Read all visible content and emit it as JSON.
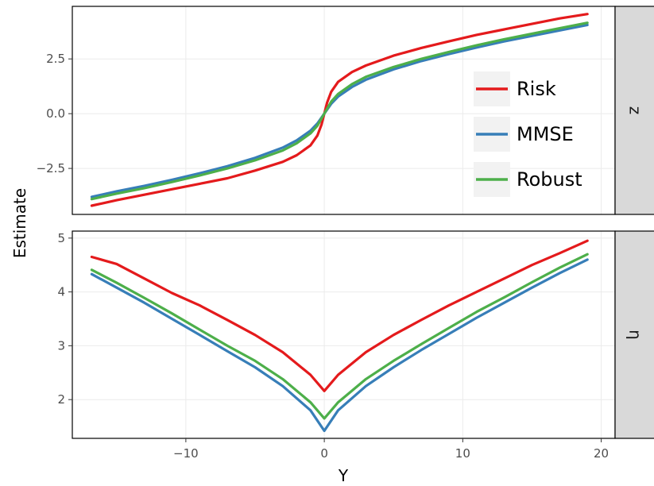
{
  "chart_data": {
    "type": "line",
    "xlabel": "Y",
    "ylabel": "Estimate",
    "xlim": [
      -18.2,
      21
    ],
    "xticks": [
      -10,
      0,
      10,
      20
    ],
    "x_tick_labels": [
      "−10",
      "0",
      "10",
      "20"
    ],
    "grid": true,
    "legend_position": "inside-top-right (top panel)",
    "colors": {
      "Risk": "#e41a1c",
      "MMSE": "#377eb8",
      "Robust": "#4daf4a"
    },
    "legend": [
      "Risk",
      "MMSE",
      "Robust"
    ],
    "panels": [
      {
        "strip_label": "z",
        "ylim": [
          -4.6,
          4.9
        ],
        "yticks": [
          -2.5,
          0,
          2.5
        ],
        "y_tick_labels": [
          "−2.5",
          "0.0",
          "2.5"
        ],
        "series": [
          {
            "name": "Risk",
            "color": "#e41a1c",
            "x": [
              -16.8,
              -15,
              -13,
              -11,
              -9,
              -7,
              -5,
              -3,
              -2,
              -1,
              -0.5,
              -0.2,
              0,
              0.2,
              0.5,
              1,
              2,
              3,
              5,
              7,
              9,
              11,
              13,
              15,
              17,
              19
            ],
            "y": [
              -4.2,
              -3.95,
              -3.7,
              -3.45,
              -3.2,
              -2.95,
              -2.6,
              -2.2,
              -1.9,
              -1.45,
              -1.0,
              -0.5,
              0.0,
              0.5,
              1.0,
              1.45,
              1.9,
              2.2,
              2.65,
              3.0,
              3.3,
              3.6,
              3.85,
              4.1,
              4.35,
              4.55
            ]
          },
          {
            "name": "MMSE",
            "color": "#377eb8",
            "x": [
              -16.8,
              -15,
              -13,
              -11,
              -9,
              -7,
              -5,
              -3,
              -2,
              -1,
              -0.5,
              0,
              0.5,
              1,
              2,
              3,
              5,
              7,
              9,
              11,
              13,
              15,
              17,
              19
            ],
            "y": [
              -3.8,
              -3.55,
              -3.3,
              -3.02,
              -2.72,
              -2.4,
              -2.02,
              -1.55,
              -1.22,
              -0.78,
              -0.45,
              0.0,
              0.45,
              0.78,
              1.22,
              1.55,
              2.02,
              2.4,
              2.72,
              3.02,
              3.3,
              3.55,
              3.8,
              4.05
            ]
          },
          {
            "name": "Robust",
            "color": "#4daf4a",
            "x": [
              -16.8,
              -15,
              -13,
              -11,
              -9,
              -7,
              -5,
              -3,
              -2,
              -1,
              -0.5,
              0,
              0.5,
              1,
              2,
              3,
              5,
              7,
              9,
              11,
              13,
              15,
              17,
              19
            ],
            "y": [
              -3.9,
              -3.65,
              -3.4,
              -3.12,
              -2.82,
              -2.5,
              -2.13,
              -1.68,
              -1.35,
              -0.9,
              -0.55,
              0.0,
              0.55,
              0.9,
              1.35,
              1.68,
              2.13,
              2.5,
              2.82,
              3.12,
              3.4,
              3.65,
              3.9,
              4.15
            ]
          }
        ]
      },
      {
        "strip_label": "η",
        "ylim": [
          1.28,
          5.13
        ],
        "yticks": [
          2,
          3,
          4,
          5
        ],
        "y_tick_labels": [
          "2",
          "3",
          "4",
          "5"
        ],
        "series": [
          {
            "name": "Risk",
            "color": "#e41a1c",
            "x": [
              -16.8,
              -15,
              -13,
              -11,
              -9,
              -7,
              -5,
              -3,
              -1,
              0,
              1,
              3,
              5,
              7,
              9,
              11,
              13,
              15,
              17,
              19
            ],
            "y": [
              4.65,
              4.52,
              4.25,
              3.98,
              3.75,
              3.48,
              3.2,
              2.88,
              2.46,
              2.16,
              2.46,
              2.88,
              3.2,
              3.48,
              3.75,
              4.0,
              4.25,
              4.5,
              4.72,
              4.95
            ]
          },
          {
            "name": "MMSE",
            "color": "#377eb8",
            "x": [
              -16.8,
              -15,
              -13,
              -11,
              -9,
              -7,
              -5,
              -3,
              -1,
              0,
              1,
              3,
              5,
              7,
              9,
              11,
              13,
              15,
              17,
              19
            ],
            "y": [
              4.33,
              4.08,
              3.8,
              3.5,
              3.2,
              2.9,
              2.6,
              2.25,
              1.8,
              1.42,
              1.8,
              2.25,
              2.6,
              2.92,
              3.22,
              3.52,
              3.8,
              4.08,
              4.35,
              4.6
            ]
          },
          {
            "name": "Robust",
            "color": "#4daf4a",
            "x": [
              -16.8,
              -15,
              -13,
              -11,
              -9,
              -7,
              -5,
              -3,
              -1,
              0,
              1,
              3,
              5,
              7,
              9,
              11,
              13,
              15,
              17,
              19
            ],
            "y": [
              4.41,
              4.17,
              3.89,
              3.6,
              3.3,
              3.0,
              2.72,
              2.38,
              1.95,
              1.65,
              1.95,
              2.38,
              2.72,
              3.03,
              3.33,
              3.63,
              3.9,
              4.18,
              4.45,
              4.7
            ]
          }
        ]
      }
    ]
  }
}
